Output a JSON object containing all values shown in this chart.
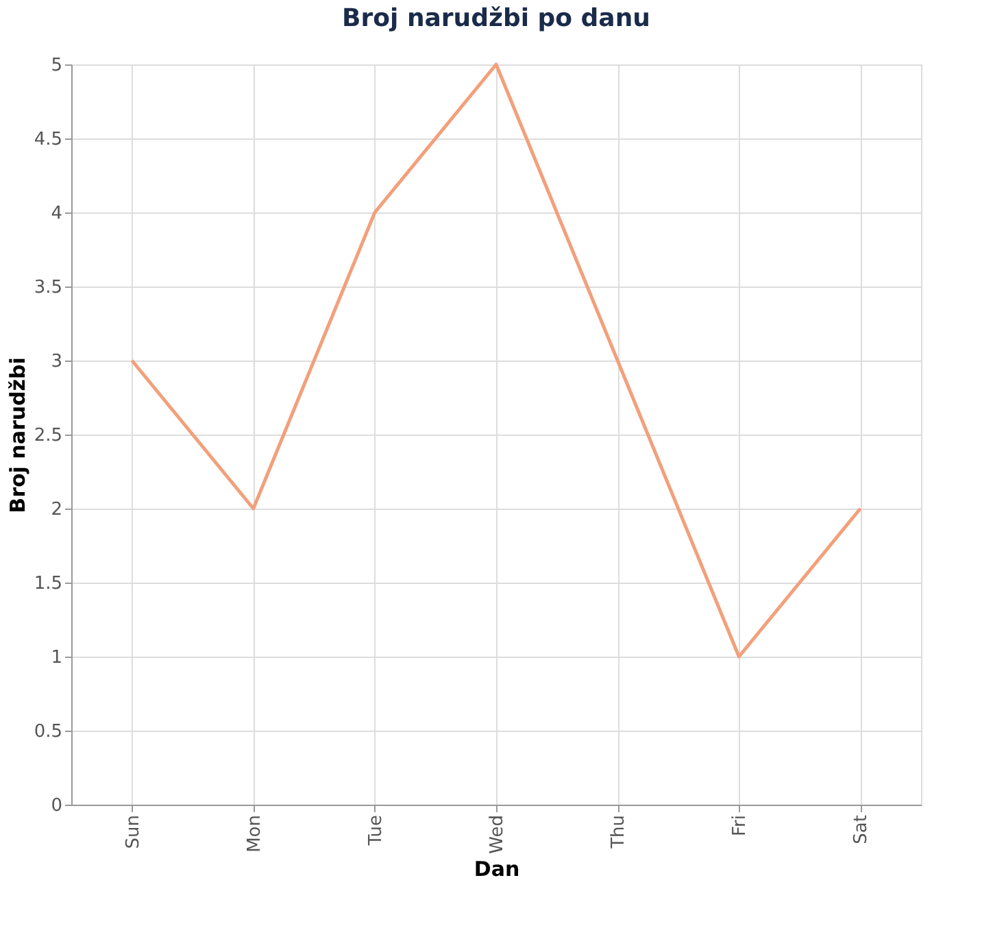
{
  "chart_data": {
    "type": "line",
    "title": "Broj narudžbi po danu",
    "xlabel": "Dan",
    "ylabel": "Broj narudžbi",
    "categories": [
      "Sun",
      "Mon",
      "Tue",
      "Wed",
      "Thu",
      "Fri",
      "Sat"
    ],
    "series": [
      {
        "color": "#f2a07b",
        "values": [
          3,
          2,
          4,
          5,
          3,
          1,
          2
        ]
      }
    ],
    "ylim": [
      0,
      5
    ],
    "yticks": [
      0,
      0.5,
      1,
      1.5,
      2,
      2.5,
      3,
      3.5,
      4,
      4.5,
      5
    ],
    "grid": true,
    "marker": "none",
    "line_style": "solid"
  }
}
